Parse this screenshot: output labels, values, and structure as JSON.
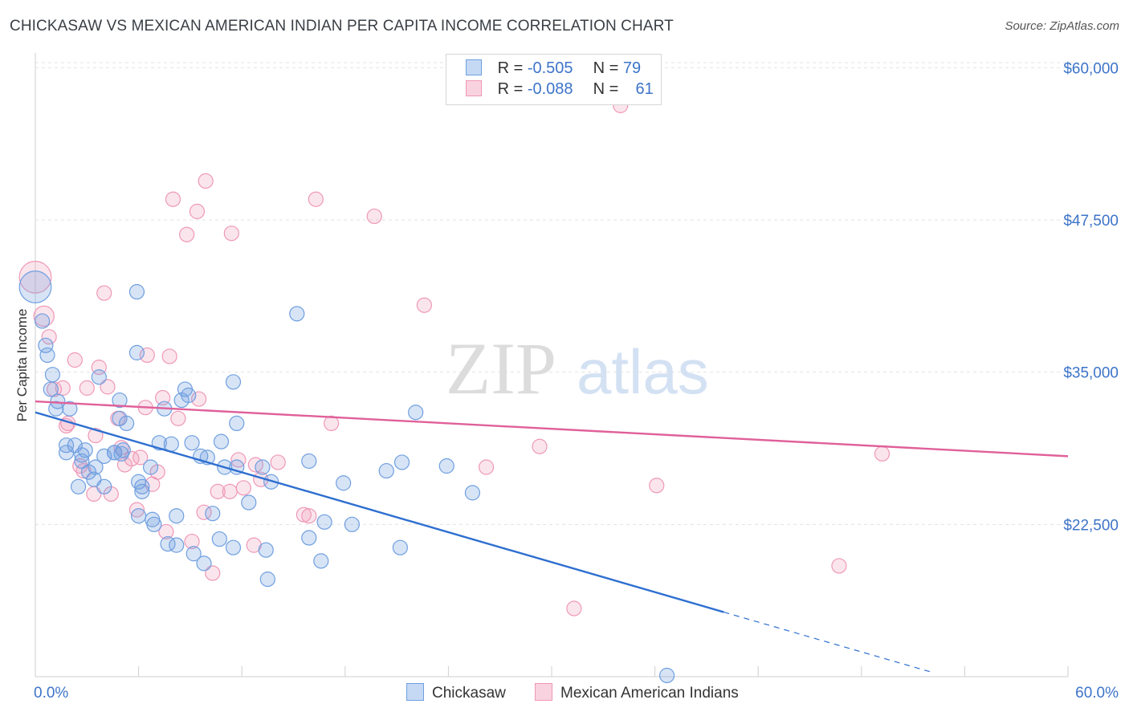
{
  "title": "CHICKASAW VS MEXICAN AMERICAN INDIAN PER CAPITA INCOME CORRELATION CHART",
  "source": "Source: ZipAtlas.com",
  "watermark": {
    "zip": "ZIP",
    "atlas": "atlas"
  },
  "legend": {
    "rows": [
      {
        "r_label": "R =",
        "r_value": "-0.505",
        "n_label": "N =",
        "n_value": "79",
        "color": "#6f9fe0"
      },
      {
        "r_label": "R =",
        "r_value": "-0.088",
        "n_label": "N =",
        "n_value": "61",
        "color": "#ef98b7"
      }
    ]
  },
  "bottom_legend": {
    "series1": "Chickasaw",
    "series2": "Mexican American Indians"
  },
  "chart_data": {
    "type": "scatter",
    "title": "CHICKASAW VS MEXICAN AMERICAN INDIAN PER CAPITA INCOME CORRELATION CHART",
    "xlabel": "",
    "ylabel": "Per Capita Income",
    "xlim": [
      0,
      60
    ],
    "ylim": [
      10000,
      62000
    ],
    "x_tick_labels": [
      "0.0%",
      "60.0%"
    ],
    "y_ticks": [
      22500,
      35000,
      47500,
      60000
    ],
    "y_tick_labels": [
      "$22,500",
      "$35,000",
      "$47,500",
      "$60,000"
    ],
    "grid": true,
    "legend_position": "top-center",
    "series": [
      {
        "name": "Chickasaw",
        "color": "#6f9fe0",
        "line_color": "#2e6fd0",
        "trend": {
          "x0": 0,
          "y0": 31700,
          "x1": 40,
          "y1": 15300,
          "dash_to_x": 52,
          "dash_to_y": 10400
        },
        "points": [
          [
            0,
            42000,
            2.2
          ],
          [
            0.4,
            39200,
            1
          ],
          [
            0.6,
            37200,
            1
          ],
          [
            0.7,
            36400,
            1
          ],
          [
            1.0,
            34800,
            1
          ],
          [
            0.9,
            33600,
            1
          ],
          [
            1.3,
            32600,
            1
          ],
          [
            1.2,
            32000,
            1
          ],
          [
            2.0,
            32000,
            1
          ],
          [
            1.8,
            29000,
            1
          ],
          [
            2.3,
            29000,
            1
          ],
          [
            1.8,
            28400,
            1
          ],
          [
            2.7,
            28200,
            1
          ],
          [
            2.7,
            27700,
            1
          ],
          [
            3.5,
            27200,
            1
          ],
          [
            3.1,
            26800,
            1
          ],
          [
            3.4,
            26200,
            1
          ],
          [
            2.5,
            25600,
            1
          ],
          [
            4.0,
            25600,
            1
          ],
          [
            3.7,
            34600,
            1
          ],
          [
            4.9,
            32700,
            1
          ],
          [
            5.3,
            30800,
            1
          ],
          [
            4.9,
            31200,
            1
          ],
          [
            4.0,
            28100,
            1
          ],
          [
            4.6,
            28400,
            1
          ],
          [
            5.1,
            28600,
            1
          ],
          [
            5.0,
            28300,
            1
          ],
          [
            5.9,
            36600,
            1
          ],
          [
            5.9,
            41600,
            1
          ],
          [
            6.2,
            25600,
            1
          ],
          [
            6.2,
            25200,
            1
          ],
          [
            6.7,
            27200,
            1
          ],
          [
            7.2,
            29200,
            1
          ],
          [
            7.9,
            29100,
            1
          ],
          [
            7.5,
            32000,
            1
          ],
          [
            8.5,
            32700,
            1
          ],
          [
            8.7,
            33600,
            1
          ],
          [
            8.9,
            33100,
            1
          ],
          [
            9.1,
            29200,
            1
          ],
          [
            9.6,
            28100,
            1
          ],
          [
            10.0,
            28000,
            1
          ],
          [
            10.8,
            29300,
            1
          ],
          [
            11.5,
            34200,
            1
          ],
          [
            11.7,
            30800,
            1
          ],
          [
            11.0,
            27200,
            1
          ],
          [
            11.7,
            27200,
            1
          ],
          [
            12.4,
            24300,
            1
          ],
          [
            13.2,
            27200,
            1
          ],
          [
            13.7,
            26000,
            1
          ],
          [
            10.3,
            23400,
            1
          ],
          [
            8.2,
            23200,
            1
          ],
          [
            6.0,
            23200,
            1
          ],
          [
            6.8,
            22900,
            1
          ],
          [
            6.9,
            22500,
            1
          ],
          [
            7.7,
            20900,
            1
          ],
          [
            8.2,
            20800,
            1
          ],
          [
            9.2,
            20100,
            1
          ],
          [
            9.8,
            19300,
            1
          ],
          [
            10.7,
            21300,
            1
          ],
          [
            11.5,
            20600,
            1
          ],
          [
            13.4,
            20400,
            1
          ],
          [
            13.5,
            18000,
            1
          ],
          [
            15.2,
            39800,
            1
          ],
          [
            15.9,
            27700,
            1
          ],
          [
            15.9,
            21400,
            1
          ],
          [
            16.6,
            19500,
            1
          ],
          [
            16.8,
            22700,
            1
          ],
          [
            17.9,
            25900,
            1
          ],
          [
            18.4,
            22500,
            1
          ],
          [
            20.4,
            26900,
            1
          ],
          [
            21.2,
            20600,
            1
          ],
          [
            21.3,
            27600,
            1
          ],
          [
            22.1,
            31700,
            1
          ],
          [
            23.9,
            27300,
            1
          ],
          [
            25.4,
            25100,
            1
          ],
          [
            36.7,
            10100,
            1
          ],
          [
            2.9,
            28600,
            1
          ],
          [
            4.6,
            28400,
            1
          ],
          [
            6.0,
            26000,
            1
          ]
        ]
      },
      {
        "name": "Mexican American Indians",
        "color": "#ef98b7",
        "line_color": "#e0609a",
        "trend": {
          "x0": 0,
          "y0": 32600,
          "x1": 60,
          "y1": 28100
        },
        "points": [
          [
            0,
            42800,
            2.2
          ],
          [
            0.5,
            39600,
            1.4
          ],
          [
            0.8,
            37900,
            1
          ],
          [
            1.1,
            33600,
            1
          ],
          [
            1.6,
            33700,
            1
          ],
          [
            1.9,
            30800,
            1
          ],
          [
            1.8,
            30600,
            1
          ],
          [
            2.3,
            36000,
            1
          ],
          [
            2.6,
            27300,
            1
          ],
          [
            2.8,
            26900,
            1
          ],
          [
            3.0,
            33700,
            1
          ],
          [
            3.4,
            25000,
            1
          ],
          [
            3.5,
            29800,
            1
          ],
          [
            3.7,
            35400,
            1
          ],
          [
            4.0,
            41500,
            1
          ],
          [
            4.2,
            33800,
            1
          ],
          [
            4.4,
            25000,
            1
          ],
          [
            4.8,
            31200,
            1
          ],
          [
            5.0,
            28800,
            1
          ],
          [
            5.2,
            27400,
            1
          ],
          [
            5.6,
            27900,
            1
          ],
          [
            5.9,
            23700,
            1
          ],
          [
            6.1,
            28000,
            1
          ],
          [
            6.4,
            32100,
            1
          ],
          [
            6.5,
            36400,
            1
          ],
          [
            6.8,
            25800,
            1
          ],
          [
            7.1,
            26800,
            1
          ],
          [
            7.4,
            32900,
            1
          ],
          [
            7.6,
            21900,
            1
          ],
          [
            7.8,
            36300,
            1
          ],
          [
            8.0,
            49200,
            1
          ],
          [
            8.3,
            31200,
            1
          ],
          [
            8.8,
            46300,
            1
          ],
          [
            9.1,
            21100,
            1
          ],
          [
            9.4,
            48200,
            1
          ],
          [
            9.5,
            32800,
            1
          ],
          [
            9.8,
            23500,
            1
          ],
          [
            9.9,
            50700,
            1
          ],
          [
            10.3,
            18500,
            1
          ],
          [
            10.6,
            25200,
            1
          ],
          [
            11.4,
            46400,
            1
          ],
          [
            11.3,
            25200,
            1
          ],
          [
            11.8,
            27800,
            1
          ],
          [
            12.1,
            25500,
            1
          ],
          [
            12.8,
            27400,
            1
          ],
          [
            12.7,
            20800,
            1
          ],
          [
            13.1,
            26200,
            1
          ],
          [
            14.1,
            27600,
            1
          ],
          [
            15.6,
            23300,
            1
          ],
          [
            15.9,
            23200,
            1
          ],
          [
            16.3,
            49200,
            1
          ],
          [
            17.2,
            30800,
            1
          ],
          [
            19.7,
            47800,
            1
          ],
          [
            22.6,
            40500,
            1
          ],
          [
            26.2,
            27200,
            1
          ],
          [
            29.3,
            28900,
            1
          ],
          [
            34.0,
            56900,
            1
          ],
          [
            36.1,
            25700,
            1
          ],
          [
            31.3,
            15600,
            1
          ],
          [
            49.2,
            28300,
            1
          ],
          [
            46.7,
            19100,
            1
          ]
        ]
      }
    ]
  }
}
